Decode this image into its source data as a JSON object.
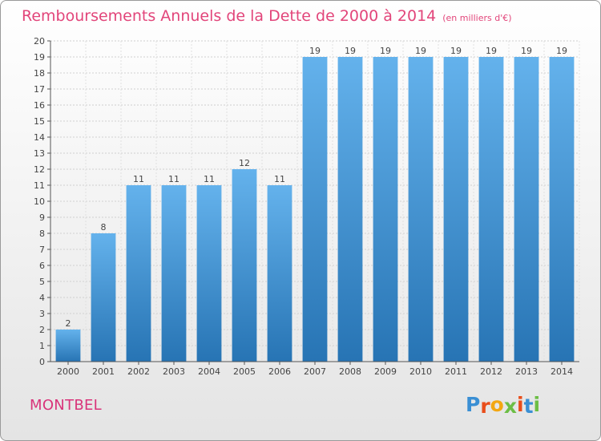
{
  "chart_data": {
    "type": "bar",
    "title": "Remboursements Annuels de la Dette de 2000 à 2014",
    "unit_note": "(en milliers d'€)",
    "categories": [
      "2000",
      "2001",
      "2002",
      "2003",
      "2004",
      "2005",
      "2006",
      "2007",
      "2008",
      "2009",
      "2010",
      "2011",
      "2012",
      "2013",
      "2014"
    ],
    "values": [
      2,
      8,
      11,
      11,
      11,
      12,
      11,
      19,
      19,
      19,
      19,
      19,
      19,
      19,
      19
    ],
    "ylim": [
      0,
      20
    ],
    "yticks": [
      0,
      1,
      2,
      3,
      4,
      5,
      6,
      7,
      8,
      9,
      10,
      11,
      12,
      13,
      14,
      15,
      16,
      17,
      18,
      19,
      20
    ],
    "xlabel": "",
    "ylabel": "",
    "grid": true,
    "bar_color_top": "#64b2ec",
    "bar_color_bottom": "#2774b4"
  },
  "location_label": "MONTBEL",
  "logo": {
    "letters": [
      "P",
      "r",
      "o",
      "x",
      "i",
      "t",
      "i"
    ],
    "colors": [
      "#3a8fd4",
      "#e94e1b",
      "#f3a712",
      "#6cbe45",
      "#e94e1b",
      "#3a8fd4",
      "#6cbe45"
    ]
  },
  "colors": {
    "title": "#e2457a",
    "location": "#d9347a"
  }
}
